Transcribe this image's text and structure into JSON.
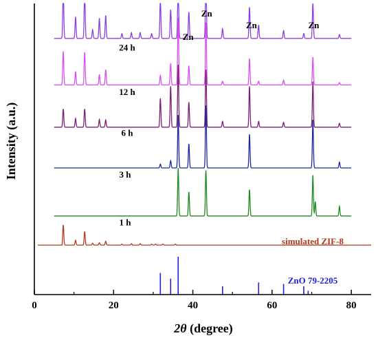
{
  "chart_data": {
    "type": "line",
    "xlabel_italic": "2θ",
    "xlabel_rest": " (degree)",
    "ylabel": "Intensity (a.u.)",
    "xlim": [
      0,
      85
    ],
    "x_ticks": [
      0,
      20,
      40,
      60,
      80
    ],
    "y_ticks_shown": false,
    "series": [
      {
        "name": "24 h",
        "color": "#8b3fe0",
        "baseline": 0.88,
        "peaks": [
          {
            "x": 7.3,
            "h": 1.0
          },
          {
            "x": 10.4,
            "h": 0.45
          },
          {
            "x": 12.7,
            "h": 0.95
          },
          {
            "x": 14.7,
            "h": 0.18
          },
          {
            "x": 16.4,
            "h": 0.42
          },
          {
            "x": 18.0,
            "h": 0.48
          },
          {
            "x": 22.1,
            "h": 0.1
          },
          {
            "x": 24.5,
            "h": 0.12
          },
          {
            "x": 26.7,
            "h": 0.12
          },
          {
            "x": 29.6,
            "h": 0.1
          },
          {
            "x": 31.8,
            "h": 0.82
          },
          {
            "x": 34.4,
            "h": 0.6
          },
          {
            "x": 36.3,
            "h": 1.2
          },
          {
            "x": 39.0,
            "h": 0.55
          },
          {
            "x": 43.3,
            "h": 1.25
          },
          {
            "x": 47.5,
            "h": 0.2
          },
          {
            "x": 54.3,
            "h": 0.65
          },
          {
            "x": 56.6,
            "h": 0.28
          },
          {
            "x": 62.9,
            "h": 0.16
          },
          {
            "x": 68.0,
            "h": 0.1
          },
          {
            "x": 70.3,
            "h": 0.75
          },
          {
            "x": 77.0,
            "h": 0.08
          }
        ]
      },
      {
        "name": "12 h",
        "color": "#d84ff0",
        "baseline": 0.72,
        "peaks": [
          {
            "x": 7.3,
            "h": 0.7
          },
          {
            "x": 10.4,
            "h": 0.28
          },
          {
            "x": 12.7,
            "h": 0.68
          },
          {
            "x": 16.4,
            "h": 0.22
          },
          {
            "x": 18.0,
            "h": 0.32
          },
          {
            "x": 31.8,
            "h": 0.2
          },
          {
            "x": 34.4,
            "h": 0.45
          },
          {
            "x": 36.3,
            "h": 1.4
          },
          {
            "x": 39.0,
            "h": 0.4
          },
          {
            "x": 43.3,
            "h": 1.3
          },
          {
            "x": 47.5,
            "h": 0.08
          },
          {
            "x": 54.3,
            "h": 0.55
          },
          {
            "x": 56.6,
            "h": 0.08
          },
          {
            "x": 62.9,
            "h": 0.1
          },
          {
            "x": 70.3,
            "h": 0.58
          },
          {
            "x": 77.0,
            "h": 0.05
          }
        ]
      },
      {
        "name": "6 h",
        "color": "#7a1f73",
        "baseline": 0.575,
        "peaks": [
          {
            "x": 7.3,
            "h": 0.38
          },
          {
            "x": 10.4,
            "h": 0.18
          },
          {
            "x": 12.7,
            "h": 0.38
          },
          {
            "x": 16.4,
            "h": 0.16
          },
          {
            "x": 18.0,
            "h": 0.15
          },
          {
            "x": 31.8,
            "h": 0.6
          },
          {
            "x": 34.4,
            "h": 0.85
          },
          {
            "x": 36.3,
            "h": 1.3
          },
          {
            "x": 39.0,
            "h": 0.52
          },
          {
            "x": 43.3,
            "h": 1.2
          },
          {
            "x": 47.5,
            "h": 0.12
          },
          {
            "x": 54.3,
            "h": 0.85
          },
          {
            "x": 56.6,
            "h": 0.12
          },
          {
            "x": 62.9,
            "h": 0.1
          },
          {
            "x": 70.3,
            "h": 0.95
          },
          {
            "x": 77.0,
            "h": 0.08
          }
        ]
      },
      {
        "name": "3 h",
        "color": "#1a2a9c",
        "baseline": 0.435,
        "peaks": [
          {
            "x": 31.8,
            "h": 0.08
          },
          {
            "x": 34.4,
            "h": 0.15
          },
          {
            "x": 36.3,
            "h": 1.1
          },
          {
            "x": 39.0,
            "h": 0.5
          },
          {
            "x": 43.3,
            "h": 1.3
          },
          {
            "x": 54.3,
            "h": 0.7
          },
          {
            "x": 70.3,
            "h": 1.0
          },
          {
            "x": 77.0,
            "h": 0.12
          }
        ]
      },
      {
        "name": "1 h",
        "color": "#1f8a1f",
        "baseline": 0.27,
        "peaks": [
          {
            "x": 36.3,
            "h": 1.0
          },
          {
            "x": 39.0,
            "h": 0.5
          },
          {
            "x": 43.3,
            "h": 0.95
          },
          {
            "x": 54.3,
            "h": 0.55
          },
          {
            "x": 70.3,
            "h": 0.85
          },
          {
            "x": 70.9,
            "h": 0.3
          },
          {
            "x": 77.0,
            "h": 0.2
          }
        ]
      },
      {
        "name": "simulated ZIF-8",
        "color": "#b03a1e",
        "baseline": 0.17,
        "peaks": [
          {
            "x": 7.3,
            "h": 0.42
          },
          {
            "x": 10.4,
            "h": 0.1
          },
          {
            "x": 12.7,
            "h": 0.28
          },
          {
            "x": 14.7,
            "h": 0.04
          },
          {
            "x": 16.4,
            "h": 0.05
          },
          {
            "x": 18.0,
            "h": 0.08
          },
          {
            "x": 22.1,
            "h": 0.02
          },
          {
            "x": 24.5,
            "h": 0.03
          },
          {
            "x": 26.7,
            "h": 0.03
          },
          {
            "x": 29.6,
            "h": 0.02
          },
          {
            "x": 30.6,
            "h": 0.02
          },
          {
            "x": 32.4,
            "h": 0.02
          },
          {
            "x": 35.6,
            "h": 0.02
          }
        ]
      }
    ],
    "reference": {
      "name": "ZnO 79-2205",
      "color": "#2020d8",
      "sticks": [
        {
          "x": 31.8,
          "h": 0.57
        },
        {
          "x": 34.4,
          "h": 0.42
        },
        {
          "x": 36.3,
          "h": 1.0
        },
        {
          "x": 47.5,
          "h": 0.22
        },
        {
          "x": 56.6,
          "h": 0.32
        },
        {
          "x": 62.9,
          "h": 0.28
        },
        {
          "x": 68.0,
          "h": 0.22
        },
        {
          "x": 69.1,
          "h": 0.1
        }
      ]
    },
    "annotations": [
      {
        "text": "Zn",
        "x": 43.5,
        "y": 0.955
      },
      {
        "text": "Zn",
        "x": 38.8,
        "y": 0.875
      },
      {
        "text": "Zn",
        "x": 54.8,
        "y": 0.915
      },
      {
        "text": "Zn",
        "x": 70.5,
        "y": 0.915
      }
    ]
  }
}
